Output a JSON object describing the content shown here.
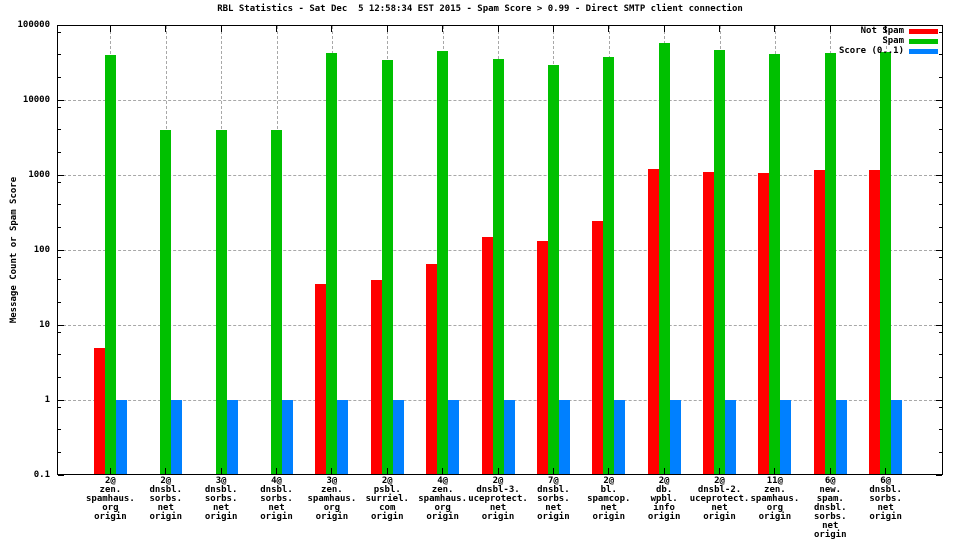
{
  "chart_data": {
    "type": "bar",
    "title": "RBL Statistics - Sat Dec  5 12:58:34 EST 2015 - Spam Score > 0.99 - Direct SMTP client connection",
    "ylabel": "Message Count or Spam Score",
    "yscale": "log",
    "ylim": [
      0.1,
      100000
    ],
    "ytick_values": [
      100000,
      10000,
      1000,
      100,
      10,
      1,
      0.1
    ],
    "ytick_labels": [
      "100000",
      "10000",
      "1000",
      "100",
      "10",
      "1",
      "0.1"
    ],
    "yminor_multipliers": [
      2,
      4,
      8
    ],
    "grid": true,
    "legend_position": "top-right",
    "categories": [
      [
        "2@",
        "zen.",
        "spamhaus.",
        "org",
        "origin"
      ],
      [
        "2@",
        "dnsbl.",
        "sorbs.",
        "net",
        "origin"
      ],
      [
        "3@",
        "dnsbl.",
        "sorbs.",
        "net",
        "origin"
      ],
      [
        "4@",
        "dnsbl.",
        "sorbs.",
        "net",
        "origin"
      ],
      [
        "3@",
        "zen.",
        "spamhaus.",
        "org",
        "origin"
      ],
      [
        "2@",
        "psbl.",
        "surriel.",
        "com",
        "origin"
      ],
      [
        "4@",
        "zen.",
        "spamhaus.",
        "org",
        "origin"
      ],
      [
        "2@",
        "dnsbl-3.",
        "uceprotect.",
        "net",
        "origin"
      ],
      [
        "7@",
        "dnsbl.",
        "sorbs.",
        "net",
        "origin"
      ],
      [
        "2@",
        "bl.",
        "spamcop.",
        "net",
        "origin"
      ],
      [
        "2@",
        "db.",
        "wpbl.",
        "info",
        "origin"
      ],
      [
        "2@",
        "dnsbl-2.",
        "uceprotect.",
        "net",
        "origin"
      ],
      [
        "11@",
        "zen.",
        "spamhaus.",
        "org",
        "origin"
      ],
      [
        "6@",
        "new.",
        "spam.",
        "dnsbl.",
        "sorbs.",
        "net",
        "origin"
      ],
      [
        "6@",
        "dnsbl.",
        "sorbs.",
        "net",
        "origin"
      ]
    ],
    "series": [
      {
        "name": "Not Spam",
        "color": "#ff0000",
        "values": [
          5,
          null,
          null,
          null,
          35,
          40,
          65,
          150,
          130,
          240,
          1200,
          1100,
          1050,
          1150,
          1150
        ]
      },
      {
        "name": "Spam",
        "color": "#00c000",
        "values": [
          40000,
          4000,
          4000,
          4000,
          42000,
          34000,
          45000,
          35000,
          29000,
          38000,
          58000,
          46000,
          41000,
          42000,
          43000
        ]
      },
      {
        "name": "Score (0..1)",
        "color": "#0080ff",
        "values": [
          1,
          1,
          1,
          1,
          1,
          1,
          1,
          1,
          1,
          1,
          1,
          1,
          1,
          1,
          1
        ]
      }
    ]
  }
}
